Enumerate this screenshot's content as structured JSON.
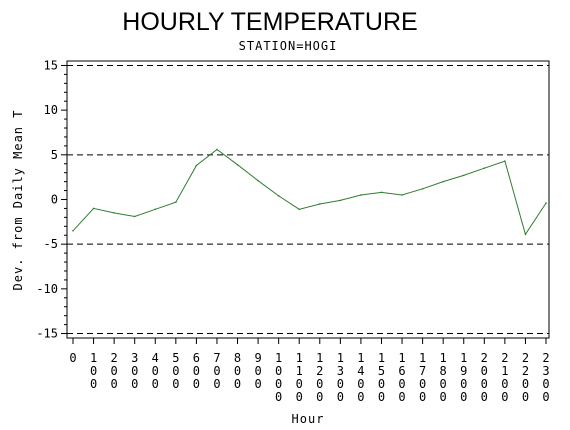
{
  "chart_data": {
    "type": "line",
    "title": "HOURLY TEMPERATURE",
    "subtitle": "STATION=HOGI",
    "xlabel": "Hour",
    "ylabel": "Dev. from Daily Mean T",
    "x_tick_labels": [
      "0",
      "100",
      "200",
      "300",
      "400",
      "500",
      "600",
      "700",
      "800",
      "900",
      "1000",
      "1100",
      "1200",
      "1300",
      "1400",
      "1500",
      "1600",
      "1700",
      "1800",
      "1900",
      "2000",
      "2100",
      "2200",
      "2300"
    ],
    "y_ticks": [
      -15,
      -10,
      -5,
      0,
      5,
      10,
      15
    ],
    "xlim": [
      0,
      2300
    ],
    "ylim": [
      -15.5,
      15.5
    ],
    "reference_lines": [
      -15,
      -5,
      5,
      15
    ],
    "grid": false,
    "series": [
      {
        "color": "#2e7d32",
        "x": [
          0,
          100,
          200,
          300,
          400,
          500,
          600,
          700,
          800,
          900,
          1000,
          1100,
          1200,
          1300,
          1400,
          1500,
          1600,
          1700,
          1800,
          1900,
          2000,
          2100,
          2200,
          2300
        ],
        "y": [
          -3.5,
          -1.0,
          -1.5,
          -1.9,
          -1.1,
          -0.3,
          3.8,
          5.6,
          3.9,
          2.1,
          0.4,
          -1.1,
          -0.5,
          -0.1,
          0.5,
          0.8,
          0.5,
          1.2,
          2.0,
          2.7,
          3.5,
          4.3,
          -3.9,
          -0.4
        ]
      }
    ]
  }
}
